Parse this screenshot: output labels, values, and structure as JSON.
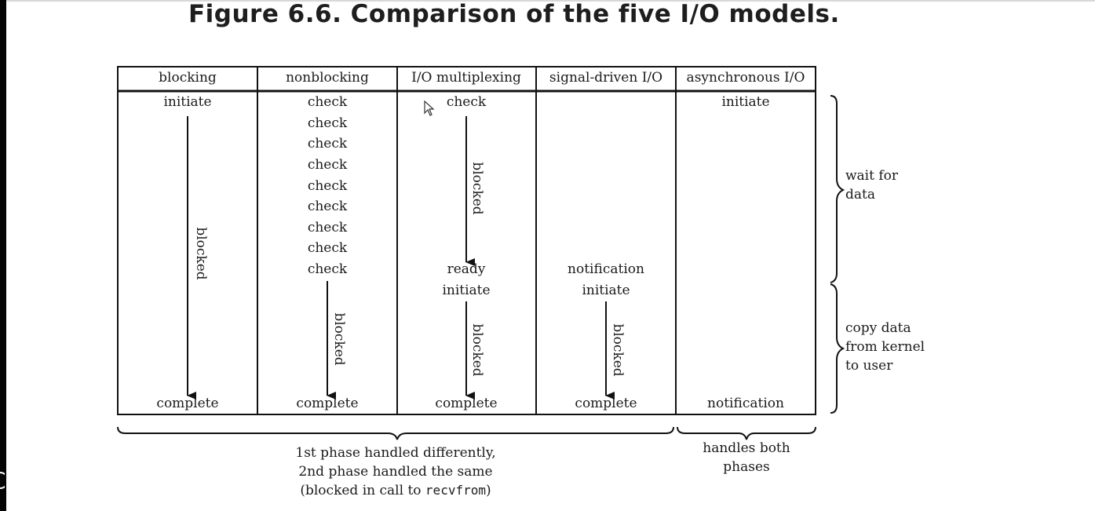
{
  "title": "Figure 6.6. Comparison of the five I/O models.",
  "columns": [
    {
      "header": "blocking",
      "top": [
        "initiate"
      ],
      "blocked": "blocked",
      "bottom": "complete"
    },
    {
      "header": "nonblocking",
      "top": [
        "check",
        "check",
        "check",
        "check",
        "check",
        "check",
        "check",
        "check",
        "check"
      ],
      "blocked": "blocked",
      "bottom": "complete"
    },
    {
      "header": "I/O multiplexing",
      "top": [
        "check"
      ],
      "blocked_1": "blocked",
      "mid": [
        "ready",
        "initiate"
      ],
      "blocked_2": "blocked",
      "bottom": "complete"
    },
    {
      "header": "signal-driven I/O",
      "mid": [
        "notification",
        "initiate"
      ],
      "blocked": "blocked",
      "bottom": "complete"
    },
    {
      "header": "asynchronous I/O",
      "top": [
        "initiate"
      ],
      "bottom": "notification"
    }
  ],
  "phases": {
    "wait": [
      "wait for",
      "data"
    ],
    "copy": [
      "copy data",
      "from kernel",
      "to user"
    ]
  },
  "bottom_notes": {
    "left": [
      "1st phase handled differently,",
      "2nd phase handled the same",
      "(blocked in call to ",
      "recvfrom",
      ")"
    ],
    "right": [
      "handles both",
      "phases"
    ]
  }
}
